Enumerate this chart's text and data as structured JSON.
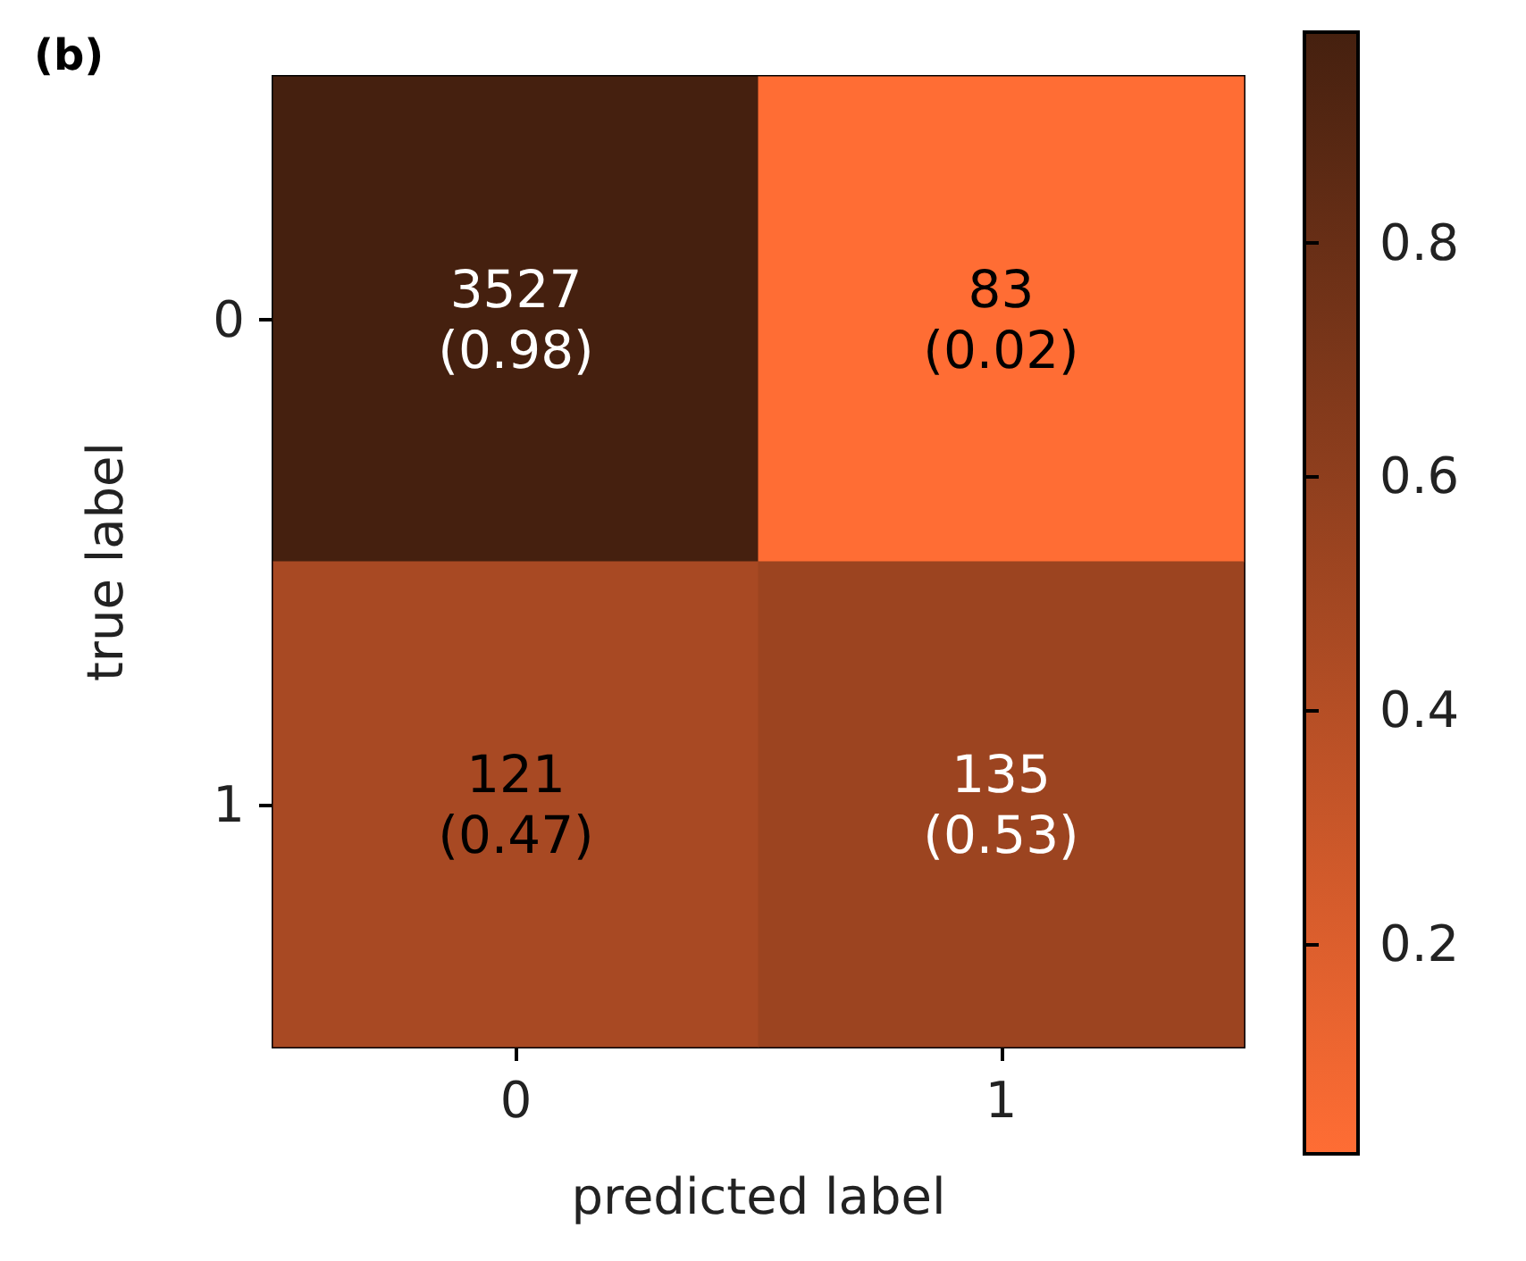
{
  "chart_data": {
    "type": "heatmap",
    "title": "(b)",
    "xlabel": "predicted label",
    "ylabel": "true label",
    "categories": [
      "0",
      "1"
    ],
    "y_categories": [
      "0",
      "1"
    ],
    "cells": [
      [
        0.98,
        0.02
      ],
      [
        0.47,
        0.53
      ]
    ],
    "cell_labels": [
      [
        "3527\n(0.98)",
        "83\n(0.02)"
      ],
      [
        "121\n(0.47)",
        "135\n(0.53)"
      ]
    ],
    "clim": [
      0.02,
      0.98
    ],
    "cticks": [
      0.2,
      0.4,
      0.6,
      0.8
    ]
  }
}
